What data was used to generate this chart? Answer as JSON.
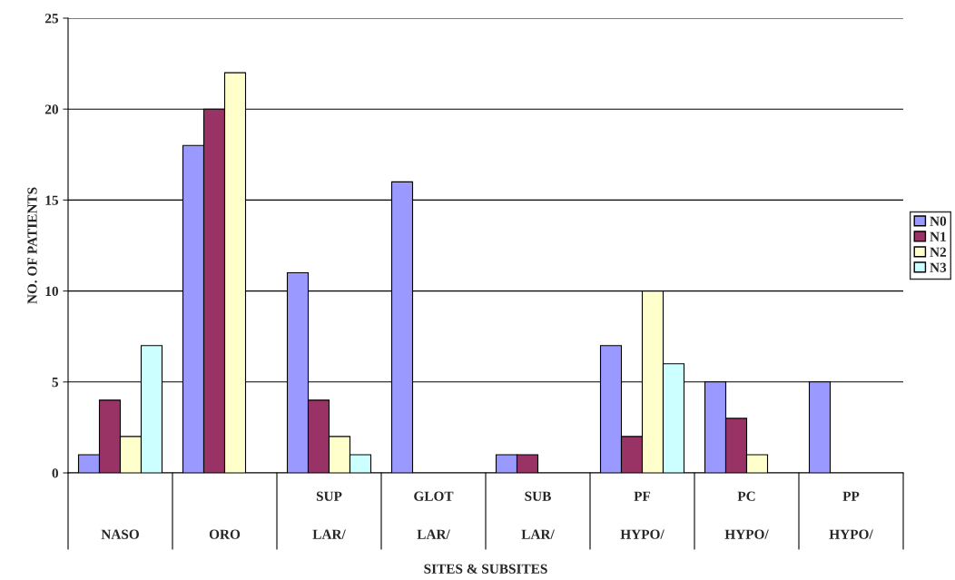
{
  "chart_data": {
    "type": "bar",
    "xlabel": "SITES & SUBSITES",
    "ylabel": "NO. OF PATIENTS",
    "categories": [
      "NASO",
      "ORO",
      "SUP\nLAR/",
      "GLOT\nLAR/",
      "SUB\nLAR/",
      "PF\nHYPO/",
      "PC\nHYPO/",
      "PP\nHYPO/"
    ],
    "series": [
      {
        "name": "N0",
        "color": "#9999ff",
        "values": [
          1,
          18,
          11,
          16,
          1,
          7,
          5,
          5
        ]
      },
      {
        "name": "N1",
        "color": "#993366",
        "values": [
          4,
          20,
          4,
          null,
          1,
          2,
          3,
          null
        ]
      },
      {
        "name": "N2",
        "color": "#ffffcc",
        "values": [
          2,
          22,
          2,
          null,
          null,
          10,
          1,
          null
        ]
      },
      {
        "name": "N3",
        "color": "#ccffff",
        "values": [
          7,
          null,
          1,
          null,
          null,
          6,
          null,
          null
        ]
      }
    ],
    "ylim": [
      0,
      25
    ],
    "yticks": [
      0,
      5,
      10,
      15,
      20,
      25
    ],
    "grid": "y",
    "legend": "right"
  }
}
